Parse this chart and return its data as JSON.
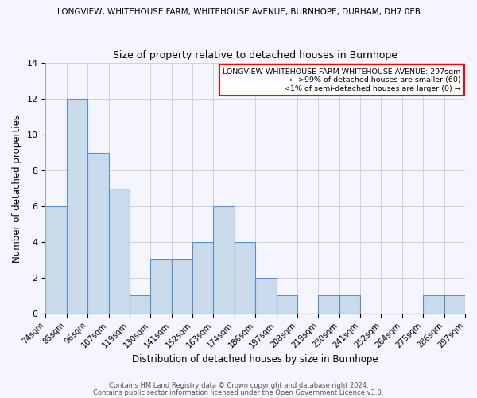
{
  "title_top": "LONGVIEW, WHITEHOUSE FARM, WHITEHOUSE AVENUE, BURNHOPE, DURHAM, DH7 0EB",
  "title_main": "Size of property relative to detached houses in Burnhope",
  "xlabel": "Distribution of detached houses by size in Burnhope",
  "ylabel": "Number of detached properties",
  "bin_labels": [
    "74sqm",
    "85sqm",
    "96sqm",
    "107sqm",
    "119sqm",
    "130sqm",
    "141sqm",
    "152sqm",
    "163sqm",
    "174sqm",
    "186sqm",
    "197sqm",
    "208sqm",
    "219sqm",
    "230sqm",
    "241sqm",
    "252sqm",
    "264sqm",
    "275sqm",
    "286sqm",
    "297sqm"
  ],
  "bar_heights": [
    6,
    12,
    9,
    7,
    1,
    3,
    3,
    4,
    6,
    4,
    2,
    1,
    0,
    1,
    1,
    0,
    0,
    0,
    1,
    1
  ],
  "bar_color": "#c9daea",
  "bar_edge_color": "#5b8fc9",
  "ylim": [
    0,
    14
  ],
  "yticks": [
    0,
    2,
    4,
    6,
    8,
    10,
    12,
    14
  ],
  "legend_title": "LONGVIEW WHITEHOUSE FARM WHITEHOUSE AVENUE: 297sqm",
  "legend_line2": "← >99% of detached houses are smaller (60)",
  "legend_line3": "<1% of semi-detached houses are larger (0) →",
  "legend_box_color": "#ff0000",
  "footnote1": "Contains HM Land Registry data © Crown copyright and database right 2024.",
  "footnote2": "Contains public sector information licensed under the Open Government Licence v3.0.",
  "background_color": "#f5f5ff",
  "grid_color": "#cccccc"
}
